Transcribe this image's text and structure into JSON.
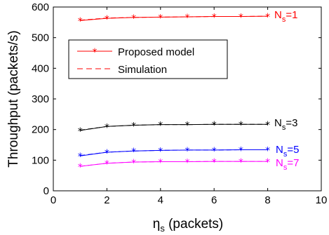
{
  "chart_data": {
    "type": "line",
    "xlabel": "η",
    "xlabel_sub": "s",
    "xlabel_unit": " (packets)",
    "ylabel": "Throughput (packets/s)",
    "xlim": [
      0,
      10
    ],
    "ylim": [
      0,
      600
    ],
    "xticks": [
      0,
      2,
      4,
      6,
      8,
      10
    ],
    "yticks": [
      0,
      100,
      200,
      300,
      400,
      500,
      600
    ],
    "grid": false,
    "legend_position": "upper-left",
    "legend": [
      {
        "label": "Proposed model",
        "style": "solid-star",
        "color": "#ff0000"
      },
      {
        "label": "Simulation",
        "style": "dashed",
        "color": "#ff0000"
      }
    ],
    "x": [
      1,
      2,
      3,
      4,
      5,
      6,
      7,
      8
    ],
    "series": [
      {
        "label_main": "N",
        "label_sub": "s",
        "label_tail": "=1",
        "color": "#ff0000",
        "model": [
          556,
          563,
          566,
          567,
          568,
          569,
          569,
          570
        ],
        "simulation": [
          557,
          564,
          566,
          567,
          568,
          569,
          569,
          570
        ]
      },
      {
        "label_main": "N",
        "label_sub": "s",
        "label_tail": "=3",
        "color": "#000000",
        "model": [
          197,
          210,
          214,
          216,
          216,
          217,
          217,
          217
        ],
        "simulation": [
          198,
          210,
          214,
          216,
          216,
          217,
          217,
          217
        ]
      },
      {
        "label_main": "N",
        "label_sub": "s",
        "label_tail": "=5",
        "color": "#0000ff",
        "model": [
          114,
          126,
          130,
          132,
          133,
          133,
          134,
          134
        ],
        "simulation": [
          115,
          126,
          130,
          132,
          133,
          133,
          134,
          134
        ]
      },
      {
        "label_main": "N",
        "label_sub": "s",
        "label_tail": "=7",
        "color": "#ff00ff",
        "model": [
          80,
          90,
          94,
          95,
          95,
          96,
          96,
          96
        ],
        "simulation": [
          80,
          90,
          94,
          95,
          95,
          96,
          96,
          96
        ]
      }
    ]
  }
}
